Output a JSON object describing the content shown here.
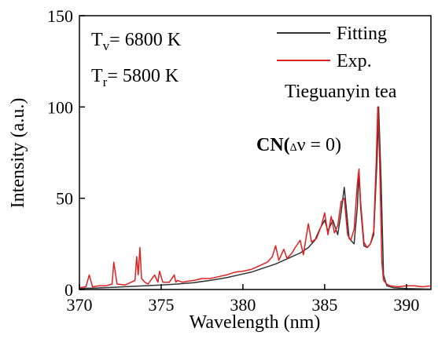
{
  "chart_data": {
    "type": "line",
    "xlabel": "Wavelength (nm)",
    "ylabel": "Intensity (a.u.)",
    "xlim": [
      370,
      391.5
    ],
    "ylim": [
      0,
      150
    ],
    "xticks": [
      370,
      375,
      380,
      385,
      390
    ],
    "yticks": [
      0,
      50,
      100,
      150
    ],
    "grid": false,
    "legend_position": "top-right",
    "annotations": {
      "tv_symbol": "T",
      "tv_sub": "v",
      "tv_value": "= 6800 K",
      "tr_symbol": "T",
      "tr_sub": "r",
      "tr_value": "= 5800 K",
      "sample": "Tieguanyin tea",
      "cn_label": "CN(",
      "cn_delta": "Δ",
      "cn_rest": "ν = 0)"
    },
    "series": [
      {
        "name": "Fitting",
        "color": "#333333",
        "x": [
          370.0,
          371.0,
          372.0,
          373.0,
          374.0,
          375.0,
          376.0,
          377.0,
          378.0,
          379.0,
          380.0,
          380.5,
          381.0,
          381.5,
          382.0,
          382.5,
          383.0,
          383.5,
          384.0,
          384.4,
          384.7,
          385.0,
          385.2,
          385.5,
          385.8,
          386.0,
          386.2,
          386.5,
          386.8,
          387.0,
          387.1,
          387.2,
          387.4,
          387.6,
          387.8,
          388.0,
          388.2,
          388.3,
          388.45,
          388.6,
          388.8,
          389.2,
          390.0,
          391.0,
          391.5
        ],
        "y": [
          0.5,
          0.8,
          1.2,
          1.6,
          2.0,
          2.5,
          3.0,
          3.8,
          5.0,
          6.5,
          8.5,
          9.5,
          11.0,
          12.5,
          14.0,
          16.0,
          18.0,
          20.0,
          23.0,
          27.0,
          33.0,
          38.0,
          32.0,
          38.0,
          30.0,
          42.0,
          56.0,
          28.0,
          25.0,
          45.0,
          64.0,
          45.0,
          24.0,
          23.0,
          25.0,
          30.0,
          70.0,
          100.0,
          60.0,
          8.0,
          2.0,
          1.0,
          0.5,
          0.3,
          0.2
        ]
      },
      {
        "name": "Exp.",
        "color": "#e02020",
        "x": [
          370.0,
          370.4,
          370.6,
          370.8,
          371.2,
          371.6,
          372.0,
          372.1,
          372.3,
          372.8,
          373.4,
          373.5,
          373.6,
          373.7,
          373.8,
          374.0,
          374.2,
          374.6,
          374.8,
          374.9,
          375.1,
          375.5,
          375.8,
          375.9,
          376.0,
          376.3,
          376.6,
          377.0,
          377.5,
          378.0,
          378.5,
          379.0,
          379.5,
          380.0,
          380.5,
          381.0,
          381.5,
          381.8,
          382.0,
          382.2,
          382.5,
          382.7,
          383.0,
          383.2,
          383.5,
          383.7,
          384.0,
          384.2,
          384.5,
          384.8,
          385.0,
          385.2,
          385.4,
          385.6,
          385.8,
          386.0,
          386.2,
          386.4,
          386.6,
          386.8,
          387.0,
          387.1,
          387.2,
          387.4,
          387.6,
          387.8,
          388.0,
          388.15,
          388.25,
          388.35,
          388.5,
          388.6,
          388.8,
          389.0,
          389.5,
          390.0,
          390.5,
          391.0,
          391.5
        ],
        "y": [
          1.0,
          1.5,
          8.0,
          1.5,
          2.0,
          2.0,
          3.0,
          15.0,
          3.0,
          2.5,
          5.0,
          18.0,
          8.0,
          23.0,
          6.0,
          4.0,
          3.0,
          8.0,
          4.0,
          10.0,
          4.0,
          4.0,
          8.0,
          4.0,
          5.0,
          4.0,
          4.5,
          5.0,
          6.0,
          6.0,
          7.0,
          8.0,
          9.5,
          10.0,
          11.0,
          13.0,
          15.0,
          18.0,
          24.0,
          16.0,
          22.0,
          17.0,
          20.0,
          23.0,
          27.0,
          19.0,
          36.0,
          26.0,
          28.0,
          35.0,
          42.0,
          30.0,
          40.0,
          31.0,
          35.0,
          48.0,
          50.0,
          30.0,
          27.0,
          33.0,
          58.0,
          66.0,
          48.0,
          26.0,
          23.0,
          25.0,
          32.0,
          70.0,
          100.0,
          75.0,
          15.0,
          5.0,
          3.0,
          2.0,
          1.5,
          2.0,
          2.0,
          1.5,
          2.0
        ]
      }
    ]
  }
}
